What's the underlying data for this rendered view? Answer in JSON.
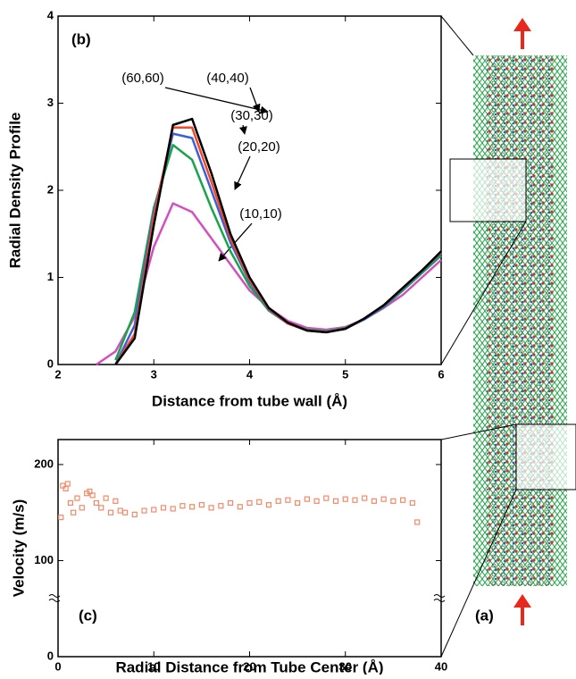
{
  "chart_data": [
    {
      "type": "line",
      "panel_label": "(b)",
      "xlabel": "Distance from tube wall (Å)",
      "ylabel": "Radial Density Profile",
      "x": [
        2.4,
        2.6,
        2.8,
        3.0,
        3.2,
        3.4,
        3.6,
        3.8,
        4.0,
        4.2,
        4.4,
        4.6,
        4.8,
        5.0,
        5.2,
        5.4,
        5.6,
        5.8,
        6.0
      ],
      "series": [
        {
          "name": "(10,10)",
          "color": "#d24fc0",
          "values": [
            0,
            0.15,
            0.55,
            1.35,
            1.85,
            1.75,
            1.45,
            1.15,
            0.85,
            0.65,
            0.5,
            0.42,
            0.4,
            0.43,
            0.52,
            0.65,
            0.8,
            1.0,
            1.2
          ]
        },
        {
          "name": "(20,20)",
          "color": "#1aa34a",
          "values": [
            null,
            0.05,
            0.6,
            1.8,
            2.52,
            2.35,
            1.8,
            1.3,
            0.9,
            0.62,
            0.47,
            0.4,
            0.38,
            0.42,
            0.52,
            0.66,
            0.85,
            1.05,
            1.25
          ]
        },
        {
          "name": "(30,30)",
          "color": "#3b5fd6",
          "values": [
            null,
            0,
            0.45,
            1.75,
            2.65,
            2.6,
            2.0,
            1.4,
            0.95,
            0.63,
            0.47,
            0.39,
            0.37,
            0.41,
            0.52,
            0.67,
            0.87,
            1.07,
            1.28
          ]
        },
        {
          "name": "(40,40)",
          "color": "#f04a2a",
          "values": [
            null,
            0,
            0.35,
            1.7,
            2.72,
            2.72,
            2.1,
            1.45,
            0.97,
            0.64,
            0.47,
            0.39,
            0.37,
            0.41,
            0.53,
            0.68,
            0.88,
            1.08,
            1.29
          ]
        },
        {
          "name": "(60,60)",
          "color": "#000000",
          "values": [
            null,
            0,
            0.3,
            1.6,
            2.75,
            2.82,
            2.2,
            1.5,
            1.0,
            0.65,
            0.48,
            0.39,
            0.37,
            0.41,
            0.53,
            0.68,
            0.88,
            1.08,
            1.3
          ]
        }
      ],
      "xlim": [
        2,
        6
      ],
      "xticks": [
        2,
        3,
        4,
        5,
        6
      ],
      "ylim": [
        0,
        4
      ],
      "yticks": [
        0,
        1,
        2,
        3,
        4
      ]
    },
    {
      "type": "scatter",
      "panel_label": "(c)",
      "xlabel": "Radial Distance from Tube Center (Å)",
      "ylabel": "Velocity (m/s)",
      "color": "#f08a6a",
      "x": [
        0.3,
        0.5,
        0.8,
        1.0,
        1.3,
        1.6,
        2.0,
        2.5,
        3.0,
        3.3,
        3.6,
        4.0,
        4.5,
        5.0,
        5.5,
        6.0,
        6.5,
        7.0,
        8.0,
        9.0,
        10,
        11,
        12,
        13,
        14,
        15,
        16,
        17,
        18,
        19,
        20,
        21,
        22,
        23,
        24,
        25,
        26,
        27,
        28,
        29,
        30,
        31,
        32,
        33,
        34,
        35,
        36,
        37,
        37.5
      ],
      "values": [
        145,
        178,
        175,
        180,
        160,
        150,
        165,
        155,
        170,
        172,
        168,
        160,
        155,
        165,
        150,
        162,
        152,
        150,
        148,
        152,
        153,
        155,
        154,
        157,
        156,
        158,
        155,
        157,
        160,
        156,
        160,
        161,
        158,
        162,
        163,
        160,
        164,
        162,
        165,
        162,
        164,
        163,
        165,
        162,
        164,
        162,
        163,
        160,
        140
      ],
      "xlim": [
        0,
        40
      ],
      "xticks": [
        0,
        10,
        20,
        30,
        40
      ],
      "ylim": [
        0,
        226
      ],
      "yticks": [
        0,
        100,
        200
      ]
    }
  ],
  "schematic": {
    "label": "(a)"
  }
}
